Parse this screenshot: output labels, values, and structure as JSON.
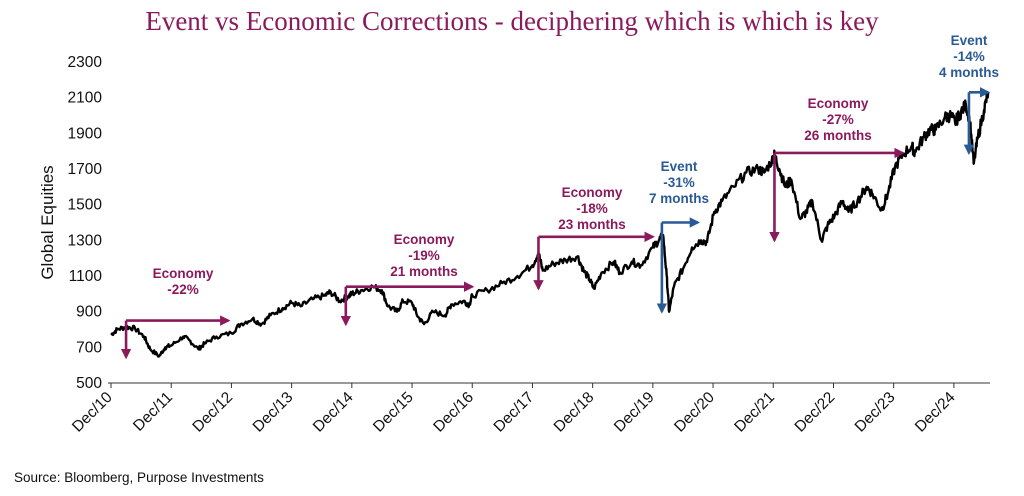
{
  "chart_data": {
    "type": "line",
    "title": "Event vs Economic Corrections - deciphering which is which is key",
    "ylabel": "Global Equities",
    "xlabel": "",
    "ylim": [
      500,
      2300
    ],
    "yticks": [
      500,
      700,
      900,
      1100,
      1300,
      1500,
      1700,
      1900,
      2100,
      2300
    ],
    "xticks": [
      "Dec/10",
      "Dec/11",
      "Dec/12",
      "Dec/13",
      "Dec/14",
      "Dec/15",
      "Dec/16",
      "Dec/17",
      "Dec/18",
      "Dec/19",
      "Dec/20",
      "Dec/21",
      "Dec/22",
      "Dec/23",
      "Dec/24"
    ],
    "x_range": [
      2010.9,
      2025.55
    ],
    "source": "Source: Bloomberg, Purpose Investments",
    "series": [
      {
        "name": "Global Equities",
        "color": "#000000",
        "points": [
          [
            2010.95,
            770
          ],
          [
            2011.05,
            800
          ],
          [
            2011.2,
            815
          ],
          [
            2011.35,
            805
          ],
          [
            2011.5,
            760
          ],
          [
            2011.6,
            690
          ],
          [
            2011.75,
            650
          ],
          [
            2011.85,
            700
          ],
          [
            2011.95,
            710
          ],
          [
            2012.15,
            760
          ],
          [
            2012.25,
            740
          ],
          [
            2012.4,
            690
          ],
          [
            2012.5,
            720
          ],
          [
            2012.7,
            760
          ],
          [
            2012.95,
            780
          ],
          [
            2013.1,
            830
          ],
          [
            2013.3,
            860
          ],
          [
            2013.45,
            830
          ],
          [
            2013.6,
            880
          ],
          [
            2013.8,
            920
          ],
          [
            2013.95,
            950
          ],
          [
            2014.1,
            930
          ],
          [
            2014.3,
            970
          ],
          [
            2014.5,
            990
          ],
          [
            2014.6,
            1010
          ],
          [
            2014.75,
            960
          ],
          [
            2014.9,
            990
          ],
          [
            2014.95,
            1000
          ],
          [
            2015.1,
            1020
          ],
          [
            2015.3,
            1040
          ],
          [
            2015.45,
            1020
          ],
          [
            2015.55,
            930
          ],
          [
            2015.7,
            900
          ],
          [
            2015.8,
            960
          ],
          [
            2015.95,
            950
          ],
          [
            2016.05,
            870
          ],
          [
            2016.15,
            830
          ],
          [
            2016.3,
            900
          ],
          [
            2016.5,
            880
          ],
          [
            2016.6,
            940
          ],
          [
            2016.8,
            960
          ],
          [
            2016.9,
            940
          ],
          [
            2016.95,
            990
          ],
          [
            2017.2,
            1020
          ],
          [
            2017.45,
            1060
          ],
          [
            2017.7,
            1100
          ],
          [
            2017.95,
            1160
          ],
          [
            2018.05,
            1230
          ],
          [
            2018.12,
            1130
          ],
          [
            2018.3,
            1170
          ],
          [
            2018.5,
            1190
          ],
          [
            2018.7,
            1210
          ],
          [
            2018.8,
            1130
          ],
          [
            2018.9,
            1080
          ],
          [
            2018.97,
            1030
          ],
          [
            2019.1,
            1120
          ],
          [
            2019.3,
            1180
          ],
          [
            2019.4,
            1120
          ],
          [
            2019.6,
            1180
          ],
          [
            2019.75,
            1160
          ],
          [
            2019.95,
            1260
          ],
          [
            2020.05,
            1300
          ],
          [
            2020.12,
            1330
          ],
          [
            2020.18,
            1100
          ],
          [
            2020.22,
            900
          ],
          [
            2020.3,
            1040
          ],
          [
            2020.45,
            1140
          ],
          [
            2020.6,
            1260
          ],
          [
            2020.75,
            1300
          ],
          [
            2020.85,
            1290
          ],
          [
            2020.97,
            1460
          ],
          [
            2021.1,
            1520
          ],
          [
            2021.3,
            1600
          ],
          [
            2021.5,
            1680
          ],
          [
            2021.7,
            1700
          ],
          [
            2021.8,
            1680
          ],
          [
            2021.95,
            1760
          ],
          [
            2021.97,
            1780
          ],
          [
            2022.05,
            1700
          ],
          [
            2022.15,
            1600
          ],
          [
            2022.25,
            1640
          ],
          [
            2022.4,
            1420
          ],
          [
            2022.5,
            1460
          ],
          [
            2022.6,
            1520
          ],
          [
            2022.75,
            1300
          ],
          [
            2022.85,
            1380
          ],
          [
            2022.97,
            1440
          ],
          [
            2023.1,
            1520
          ],
          [
            2023.2,
            1460
          ],
          [
            2023.35,
            1520
          ],
          [
            2023.5,
            1600
          ],
          [
            2023.6,
            1560
          ],
          [
            2023.75,
            1470
          ],
          [
            2023.85,
            1560
          ],
          [
            2023.97,
            1710
          ],
          [
            2024.1,
            1780
          ],
          [
            2024.25,
            1830
          ],
          [
            2024.3,
            1790
          ],
          [
            2024.45,
            1880
          ],
          [
            2024.55,
            1920
          ],
          [
            2024.65,
            1920
          ],
          [
            2024.8,
            1990
          ],
          [
            2024.9,
            2000
          ],
          [
            2024.97,
            1960
          ],
          [
            2025.05,
            2010
          ],
          [
            2025.15,
            2060
          ],
          [
            2025.22,
            1960
          ],
          [
            2025.28,
            1730
          ],
          [
            2025.35,
            1880
          ],
          [
            2025.45,
            2030
          ],
          [
            2025.52,
            2130
          ]
        ]
      }
    ],
    "annotations": [
      {
        "kind": "Economy",
        "color": "#8b1a5c",
        "lines": [
          "Economy",
          "-22%"
        ],
        "start_x": 2011.2,
        "end_x": 2012.9,
        "level": 850,
        "trough": 645
      },
      {
        "kind": "Economy",
        "color": "#8b1a5c",
        "lines": [
          "Economy",
          "-19%",
          "21 months"
        ],
        "start_x": 2014.85,
        "end_x": 2016.95,
        "level": 1040,
        "trough": 830
      },
      {
        "kind": "Economy",
        "color": "#8b1a5c",
        "lines": [
          "Economy",
          "-18%",
          "23 months"
        ],
        "start_x": 2018.05,
        "end_x": 2019.95,
        "level": 1320,
        "trough": 1030
      },
      {
        "kind": "Event",
        "color": "#2a5a96",
        "lines": [
          "Event",
          "-31%",
          "7 months"
        ],
        "start_x": 2020.1,
        "end_x": 2020.7,
        "level": 1400,
        "trough": 900
      },
      {
        "kind": "Economy",
        "color": "#8b1a5c",
        "lines": [
          "Economy",
          "-27%",
          "26 months"
        ],
        "start_x": 2021.97,
        "end_x": 2024.1,
        "level": 1790,
        "trough": 1300
      },
      {
        "kind": "Event",
        "color": "#2a5a96",
        "lines": [
          "Event",
          "-14%",
          "4 months"
        ],
        "start_x": 2025.2,
        "end_x": 2025.52,
        "level": 2130,
        "trough": 1790
      }
    ]
  }
}
